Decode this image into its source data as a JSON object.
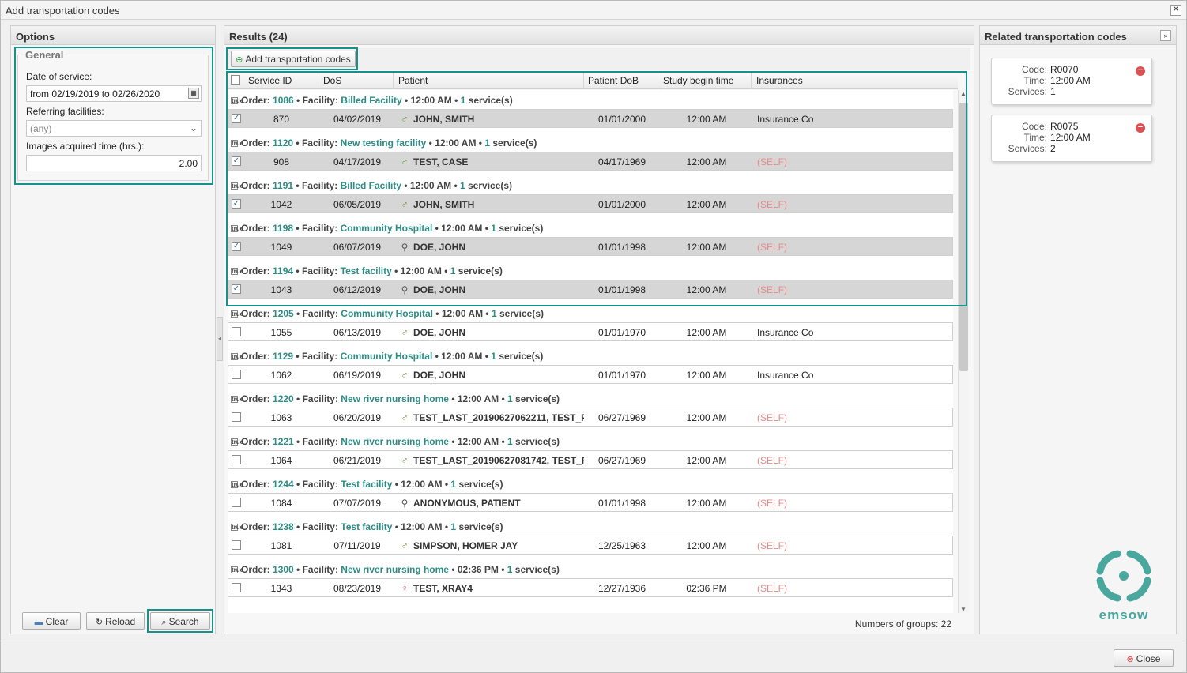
{
  "window": {
    "title": "Add transportation codes",
    "close_glyph": "✕"
  },
  "options": {
    "header": "Options",
    "general_legend": "General",
    "date_label": "Date of service:",
    "date_value": "from 02/19/2019 to 02/26/2020",
    "referring_label": "Referring facilities:",
    "referring_value": "(any)",
    "images_label": "Images acquired time (hrs.):",
    "images_value": "2.00",
    "buttons": {
      "clear": "Clear",
      "reload": "Reload",
      "search": "Search"
    }
  },
  "results": {
    "header": "Results (24)",
    "add_button": "Add transportation codes",
    "columns": [
      "Service ID",
      "DoS",
      "Patient",
      "Patient DoB",
      "Study begin time",
      "Insurances"
    ],
    "group_labels": {
      "order": "Order:",
      "facility": "Facility:",
      "services_suffix": "service(s)"
    },
    "groups": [
      {
        "order": "1086",
        "facility": "Billed Facility",
        "time": "12:00 AM",
        "count": "1",
        "row": {
          "checked": true,
          "id": "870",
          "dos": "04/02/2019",
          "gender": "male",
          "patient": "JOHN, SMITH",
          "dob": "01/01/2000",
          "begin": "12:00 AM",
          "ins": "Insurance Co",
          "self": false
        }
      },
      {
        "order": "1120",
        "facility": "New testing facility",
        "time": "12:00 AM",
        "count": "1",
        "row": {
          "checked": true,
          "id": "908",
          "dos": "04/17/2019",
          "gender": "male",
          "patient": "TEST, CASE",
          "dob": "04/17/1969",
          "begin": "12:00 AM",
          "ins": "(SELF)",
          "self": true
        }
      },
      {
        "order": "1191",
        "facility": "Billed Facility",
        "time": "12:00 AM",
        "count": "1",
        "row": {
          "checked": true,
          "id": "1042",
          "dos": "06/05/2019",
          "gender": "male",
          "patient": "JOHN, SMITH",
          "dob": "01/01/2000",
          "begin": "12:00 AM",
          "ins": "(SELF)",
          "self": true
        }
      },
      {
        "order": "1198",
        "facility": "Community Hospital",
        "time": "12:00 AM",
        "count": "1",
        "row": {
          "checked": true,
          "id": "1049",
          "dos": "06/07/2019",
          "gender": "unknown",
          "patient": "DOE, JOHN",
          "dob": "01/01/1998",
          "begin": "12:00 AM",
          "ins": "(SELF)",
          "self": true
        }
      },
      {
        "order": "1194",
        "facility": "Test facility",
        "time": "12:00 AM",
        "count": "1",
        "row": {
          "checked": true,
          "id": "1043",
          "dos": "06/12/2019",
          "gender": "unknown",
          "patient": "DOE, JOHN",
          "dob": "01/01/1998",
          "begin": "12:00 AM",
          "ins": "(SELF)",
          "self": true
        }
      },
      {
        "order": "1205",
        "facility": "Community Hospital",
        "time": "12:00 AM",
        "count": "1",
        "row": {
          "checked": false,
          "id": "1055",
          "dos": "06/13/2019",
          "gender": "male",
          "patient": "DOE, JOHN",
          "dob": "01/01/1970",
          "begin": "12:00 AM",
          "ins": "Insurance Co",
          "self": false
        }
      },
      {
        "order": "1129",
        "facility": "Community Hospital",
        "time": "12:00 AM",
        "count": "1",
        "row": {
          "checked": false,
          "id": "1062",
          "dos": "06/19/2019",
          "gender": "male",
          "patient": "DOE, JOHN",
          "dob": "01/01/1970",
          "begin": "12:00 AM",
          "ins": "Insurance Co",
          "self": false
        }
      },
      {
        "order": "1220",
        "facility": "New river nursing home",
        "time": "12:00 AM",
        "count": "1",
        "row": {
          "checked": false,
          "id": "1063",
          "dos": "06/20/2019",
          "gender": "male",
          "patient": "TEST_LAST_20190627062211, TEST_F",
          "dob": "06/27/1969",
          "begin": "12:00 AM",
          "ins": "(SELF)",
          "self": true
        }
      },
      {
        "order": "1221",
        "facility": "New river nursing home",
        "time": "12:00 AM",
        "count": "1",
        "row": {
          "checked": false,
          "id": "1064",
          "dos": "06/21/2019",
          "gender": "male",
          "patient": "TEST_LAST_20190627081742, TEST_F",
          "dob": "06/27/1969",
          "begin": "12:00 AM",
          "ins": "(SELF)",
          "self": true
        }
      },
      {
        "order": "1244",
        "facility": "Test facility",
        "time": "12:00 AM",
        "count": "1",
        "row": {
          "checked": false,
          "id": "1084",
          "dos": "07/07/2019",
          "gender": "unknown",
          "patient": "ANONYMOUS, PATIENT",
          "dob": "01/01/1998",
          "begin": "12:00 AM",
          "ins": "(SELF)",
          "self": true
        }
      },
      {
        "order": "1238",
        "facility": "Test facility",
        "time": "12:00 AM",
        "count": "1",
        "row": {
          "checked": false,
          "id": "1081",
          "dos": "07/11/2019",
          "gender": "male",
          "patient": "SIMPSON, HOMER JAY",
          "dob": "12/25/1963",
          "begin": "12:00 AM",
          "ins": "(SELF)",
          "self": true
        }
      },
      {
        "order": "1300",
        "facility": "New river nursing home",
        "time": "02:36 PM",
        "count": "1",
        "row": {
          "checked": false,
          "id": "1343",
          "dos": "08/23/2019",
          "gender": "female",
          "patient": "TEST, XRAY4",
          "dob": "12/27/1936",
          "begin": "02:36 PM",
          "ins": "(SELF)",
          "self": true
        }
      }
    ],
    "status_label": "Numbers of groups:",
    "status_value": "22"
  },
  "related": {
    "header": "Related transportation codes",
    "labels": {
      "code": "Code:",
      "time": "Time:",
      "services": "Services:"
    },
    "cards": [
      {
        "code": "R0070",
        "time": "12:00 AM",
        "services": "1"
      },
      {
        "code": "R0075",
        "time": "12:00 AM",
        "services": "2"
      }
    ],
    "logo_text": "emsow"
  },
  "footer": {
    "close": "Close"
  },
  "colors": {
    "accent": "#18918a",
    "link": "#2d8d85",
    "self": "#e88a8a",
    "male": "#5a8a3a",
    "female": "#c060b0"
  },
  "icons": {
    "male": "male-icon",
    "female": "female-icon",
    "unknown": "unknown-gender-icon",
    "add": "add-icon",
    "remove": "remove-icon"
  }
}
